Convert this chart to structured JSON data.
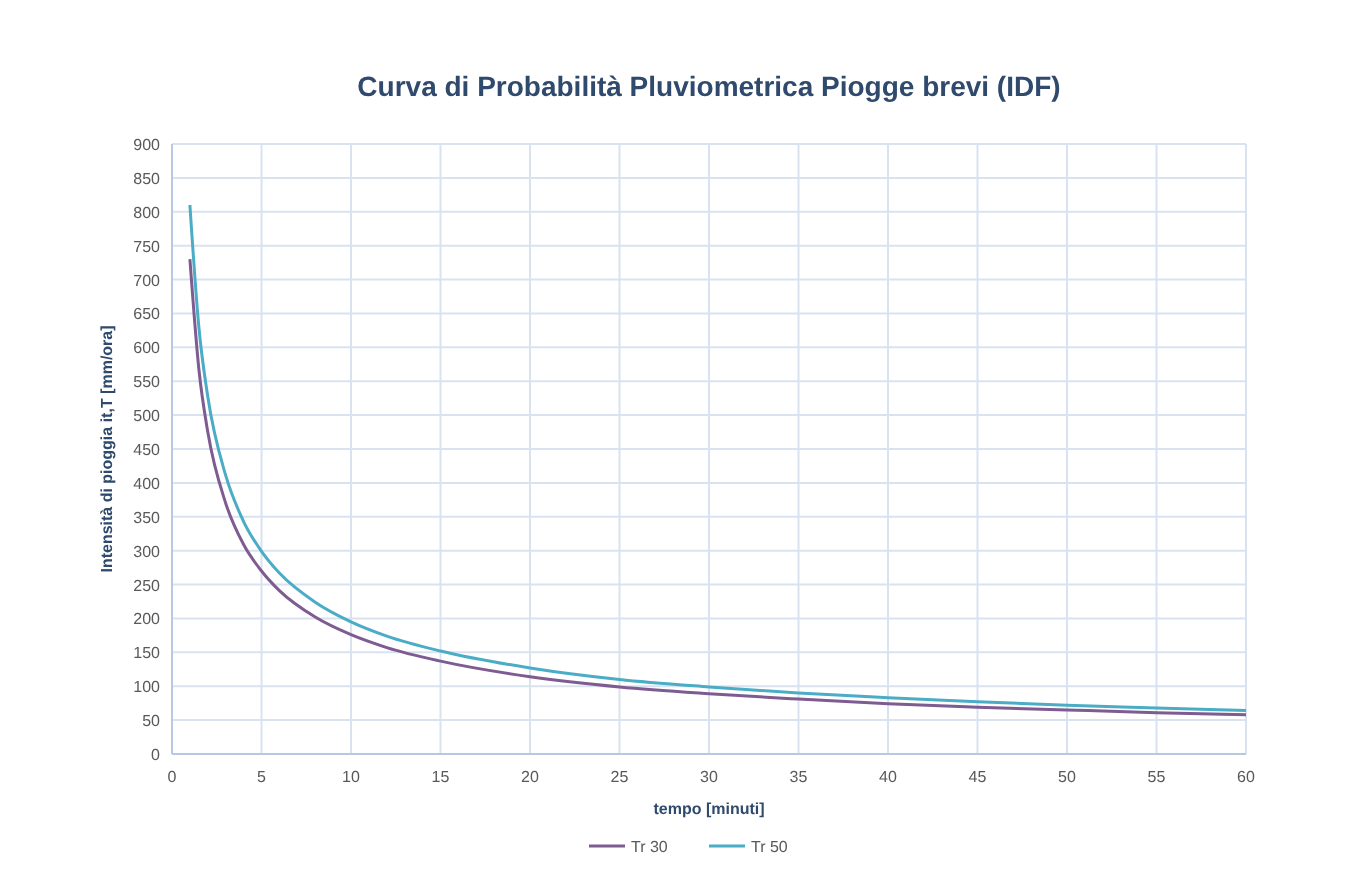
{
  "chart_data": {
    "type": "line",
    "title": "Curva di Probabilità Pluviometrica Piogge brevi (IDF)",
    "xlabel": "tempo [minuti]",
    "ylabel": "Intensità di pioggia it,T [mm/ora]",
    "x": [
      1,
      1.5,
      2,
      3,
      4,
      5,
      6,
      8,
      10,
      12,
      15,
      20,
      25,
      30,
      35,
      40,
      45,
      50,
      55,
      60
    ],
    "series": [
      {
        "name": "Tr 30",
        "color": "#7e5b91",
        "values": [
          730,
          568,
          475,
          370,
          309,
          270,
          241,
          202,
          176,
          157,
          137,
          114,
          99,
          89,
          81,
          74,
          69,
          65,
          61,
          58
        ]
      },
      {
        "name": "Tr 50",
        "color": "#4bacc6",
        "values": [
          810,
          630,
          527,
          411,
          343,
          299,
          267,
          224,
          195,
          174,
          152,
          127,
          110,
          99,
          90,
          83,
          77,
          72,
          68,
          64
        ]
      }
    ],
    "xlim": [
      0,
      60
    ],
    "xticks": [
      0,
      5,
      10,
      15,
      20,
      25,
      30,
      35,
      40,
      45,
      50,
      55,
      60
    ],
    "ylim": [
      0,
      900
    ],
    "yticks": [
      0,
      50,
      100,
      150,
      200,
      250,
      300,
      350,
      400,
      450,
      500,
      550,
      600,
      650,
      700,
      750,
      800,
      850,
      900
    ],
    "grid": true,
    "legend": "bottom",
    "line_style": "solid"
  }
}
